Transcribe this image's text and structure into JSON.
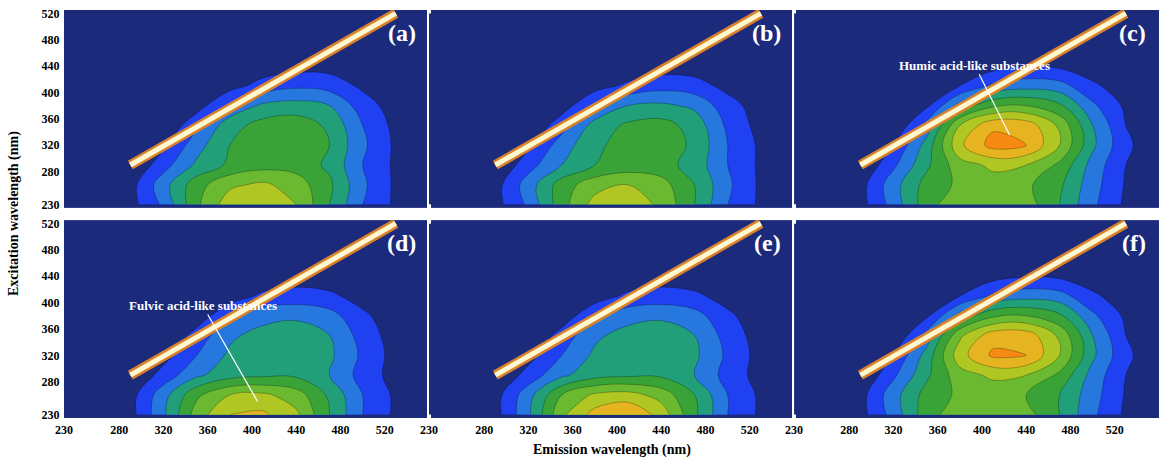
{
  "chart_data": {
    "type": "contour",
    "x_label": "Emission wavelength (nm)",
    "y_label": "Excitation wavelength (nm)",
    "xlim": [
      230,
      560
    ],
    "ylim": [
      225,
      525
    ],
    "xticks": [
      230,
      280,
      320,
      360,
      400,
      440,
      480,
      520
    ],
    "yticks": [
      230,
      280,
      320,
      360,
      400,
      440,
      480,
      520
    ],
    "zlim": [
      0,
      100
    ],
    "x": [
      230,
      260,
      290,
      320,
      350,
      380,
      410,
      440,
      470,
      500,
      530,
      560
    ],
    "y": [
      230,
      260,
      290,
      320,
      350,
      380,
      410,
      440,
      470,
      500,
      520
    ],
    "rayleigh_scatter": {
      "x": [
        290,
        530
      ],
      "y": [
        290,
        520
      ],
      "color": "#fff7d0"
    },
    "panels": [
      {
        "label": "(a)",
        "z": [
          [
            0,
            0,
            6,
            22,
            48,
            66,
            68,
            60,
            40,
            20,
            8,
            2
          ],
          [
            0,
            0,
            6,
            26,
            46,
            58,
            62,
            55,
            42,
            22,
            8,
            2
          ],
          [
            0,
            0,
            0,
            16,
            32,
            42,
            46,
            46,
            38,
            20,
            8,
            2
          ],
          [
            0,
            0,
            0,
            8,
            26,
            40,
            46,
            48,
            40,
            22,
            8,
            2
          ],
          [
            0,
            0,
            0,
            0,
            18,
            36,
            44,
            46,
            38,
            20,
            7,
            2
          ],
          [
            0,
            0,
            0,
            0,
            5,
            22,
            32,
            34,
            30,
            15,
            5,
            0
          ],
          [
            0,
            0,
            0,
            0,
            0,
            6,
            14,
            18,
            16,
            8,
            3,
            0
          ],
          [
            0,
            0,
            0,
            0,
            0,
            0,
            4,
            6,
            6,
            3,
            0,
            0
          ],
          [
            0,
            0,
            0,
            0,
            0,
            0,
            0,
            0,
            0,
            0,
            0,
            0
          ],
          [
            0,
            0,
            0,
            0,
            0,
            0,
            0,
            0,
            0,
            0,
            0,
            0
          ],
          [
            0,
            0,
            0,
            0,
            0,
            0,
            0,
            0,
            0,
            0,
            0,
            0
          ]
        ]
      },
      {
        "label": "(b)",
        "z": [
          [
            0,
            0,
            6,
            22,
            46,
            64,
            66,
            58,
            40,
            20,
            8,
            2
          ],
          [
            0,
            0,
            6,
            25,
            45,
            56,
            60,
            54,
            40,
            22,
            8,
            2
          ],
          [
            0,
            0,
            0,
            16,
            30,
            40,
            44,
            44,
            36,
            20,
            8,
            2
          ],
          [
            0,
            0,
            0,
            8,
            25,
            38,
            44,
            46,
            38,
            20,
            8,
            2
          ],
          [
            0,
            0,
            0,
            0,
            16,
            34,
            42,
            44,
            36,
            18,
            6,
            2
          ],
          [
            0,
            0,
            0,
            0,
            5,
            20,
            30,
            32,
            28,
            14,
            5,
            0
          ],
          [
            0,
            0,
            0,
            0,
            0,
            6,
            12,
            16,
            14,
            7,
            3,
            0
          ],
          [
            0,
            0,
            0,
            0,
            0,
            0,
            3,
            5,
            5,
            2,
            0,
            0
          ],
          [
            0,
            0,
            0,
            0,
            0,
            0,
            0,
            0,
            0,
            0,
            0,
            0
          ],
          [
            0,
            0,
            0,
            0,
            0,
            0,
            0,
            0,
            0,
            0,
            0,
            0
          ],
          [
            0,
            0,
            0,
            0,
            0,
            0,
            0,
            0,
            0,
            0,
            0,
            0
          ]
        ]
      },
      {
        "label": "(c)",
        "annotation": {
          "text": "Humic acid-like substances",
          "x": 425,
          "y": 335
        },
        "z": [
          [
            0,
            0,
            6,
            24,
            46,
            58,
            60,
            55,
            40,
            22,
            8,
            2
          ],
          [
            0,
            0,
            6,
            26,
            44,
            52,
            56,
            52,
            42,
            24,
            9,
            2
          ],
          [
            0,
            0,
            0,
            18,
            38,
            56,
            62,
            60,
            48,
            26,
            10,
            2
          ],
          [
            0,
            0,
            0,
            10,
            34,
            68,
            84,
            80,
            60,
            32,
            12,
            3
          ],
          [
            0,
            0,
            0,
            0,
            24,
            60,
            78,
            76,
            58,
            30,
            10,
            3
          ],
          [
            0,
            0,
            0,
            0,
            8,
            34,
            48,
            50,
            42,
            22,
            8,
            2
          ],
          [
            0,
            0,
            0,
            0,
            0,
            10,
            22,
            26,
            24,
            12,
            4,
            0
          ],
          [
            0,
            0,
            0,
            0,
            0,
            0,
            6,
            9,
            8,
            4,
            0,
            0
          ],
          [
            0,
            0,
            0,
            0,
            0,
            0,
            0,
            0,
            0,
            0,
            0,
            0
          ],
          [
            0,
            0,
            0,
            0,
            0,
            0,
            0,
            0,
            0,
            0,
            0,
            0
          ],
          [
            0,
            0,
            0,
            0,
            0,
            0,
            0,
            0,
            0,
            0,
            0,
            0
          ]
        ]
      },
      {
        "label": "(d)",
        "annotation": {
          "text": "Fulvic acid-like substances",
          "x": 405,
          "y": 250
        },
        "z": [
          [
            0,
            0,
            6,
            28,
            55,
            70,
            72,
            62,
            40,
            20,
            8,
            2
          ],
          [
            0,
            0,
            6,
            26,
            48,
            60,
            62,
            55,
            38,
            20,
            8,
            2
          ],
          [
            0,
            0,
            0,
            14,
            28,
            36,
            38,
            38,
            30,
            16,
            6,
            2
          ],
          [
            0,
            0,
            0,
            6,
            20,
            32,
            36,
            38,
            32,
            18,
            6,
            2
          ],
          [
            0,
            0,
            0,
            0,
            14,
            28,
            34,
            36,
            30,
            16,
            5,
            0
          ],
          [
            0,
            0,
            0,
            0,
            4,
            18,
            26,
            28,
            24,
            12,
            4,
            0
          ],
          [
            0,
            0,
            0,
            0,
            0,
            5,
            12,
            14,
            12,
            6,
            2,
            0
          ],
          [
            0,
            0,
            0,
            0,
            0,
            0,
            3,
            5,
            4,
            2,
            0,
            0
          ],
          [
            0,
            0,
            0,
            0,
            0,
            0,
            0,
            0,
            0,
            0,
            0,
            0
          ],
          [
            0,
            0,
            0,
            0,
            0,
            0,
            0,
            0,
            0,
            0,
            0,
            0
          ],
          [
            0,
            0,
            0,
            0,
            0,
            0,
            0,
            0,
            0,
            0,
            0,
            0
          ]
        ]
      },
      {
        "label": "(e)",
        "z": [
          [
            0,
            0,
            6,
            28,
            58,
            74,
            80,
            66,
            42,
            20,
            8,
            2
          ],
          [
            0,
            0,
            6,
            26,
            50,
            62,
            64,
            56,
            40,
            20,
            8,
            2
          ],
          [
            0,
            0,
            0,
            14,
            28,
            36,
            38,
            38,
            30,
            16,
            6,
            2
          ],
          [
            0,
            0,
            0,
            6,
            20,
            32,
            36,
            38,
            32,
            18,
            6,
            2
          ],
          [
            0,
            0,
            0,
            0,
            14,
            28,
            34,
            36,
            30,
            16,
            5,
            0
          ],
          [
            0,
            0,
            0,
            0,
            4,
            18,
            26,
            28,
            24,
            12,
            4,
            0
          ],
          [
            0,
            0,
            0,
            0,
            0,
            5,
            12,
            14,
            12,
            6,
            2,
            0
          ],
          [
            0,
            0,
            0,
            0,
            0,
            0,
            3,
            5,
            4,
            2,
            0,
            0
          ],
          [
            0,
            0,
            0,
            0,
            0,
            0,
            0,
            0,
            0,
            0,
            0,
            0
          ],
          [
            0,
            0,
            0,
            0,
            0,
            0,
            0,
            0,
            0,
            0,
            0,
            0
          ],
          [
            0,
            0,
            0,
            0,
            0,
            0,
            0,
            0,
            0,
            0,
            0,
            0
          ]
        ]
      },
      {
        "label": "(f)",
        "z": [
          [
            0,
            0,
            6,
            24,
            46,
            56,
            58,
            54,
            40,
            22,
            8,
            2
          ],
          [
            0,
            0,
            6,
            26,
            44,
            52,
            54,
            50,
            40,
            24,
            9,
            2
          ],
          [
            0,
            0,
            0,
            18,
            38,
            56,
            62,
            60,
            48,
            26,
            10,
            2
          ],
          [
            0,
            0,
            0,
            10,
            34,
            66,
            82,
            80,
            60,
            32,
            12,
            3
          ],
          [
            0,
            0,
            0,
            0,
            24,
            58,
            76,
            76,
            58,
            30,
            10,
            3
          ],
          [
            0,
            0,
            0,
            0,
            8,
            34,
            48,
            50,
            42,
            22,
            8,
            2
          ],
          [
            0,
            0,
            0,
            0,
            0,
            10,
            22,
            26,
            24,
            12,
            4,
            0
          ],
          [
            0,
            0,
            0,
            0,
            0,
            0,
            6,
            9,
            8,
            4,
            0,
            0
          ],
          [
            0,
            0,
            0,
            0,
            0,
            0,
            0,
            0,
            0,
            0,
            0,
            0
          ],
          [
            0,
            0,
            0,
            0,
            0,
            0,
            0,
            0,
            0,
            0,
            0,
            0
          ],
          [
            0,
            0,
            0,
            0,
            0,
            0,
            0,
            0,
            0,
            0,
            0,
            0
          ]
        ]
      }
    ]
  }
}
